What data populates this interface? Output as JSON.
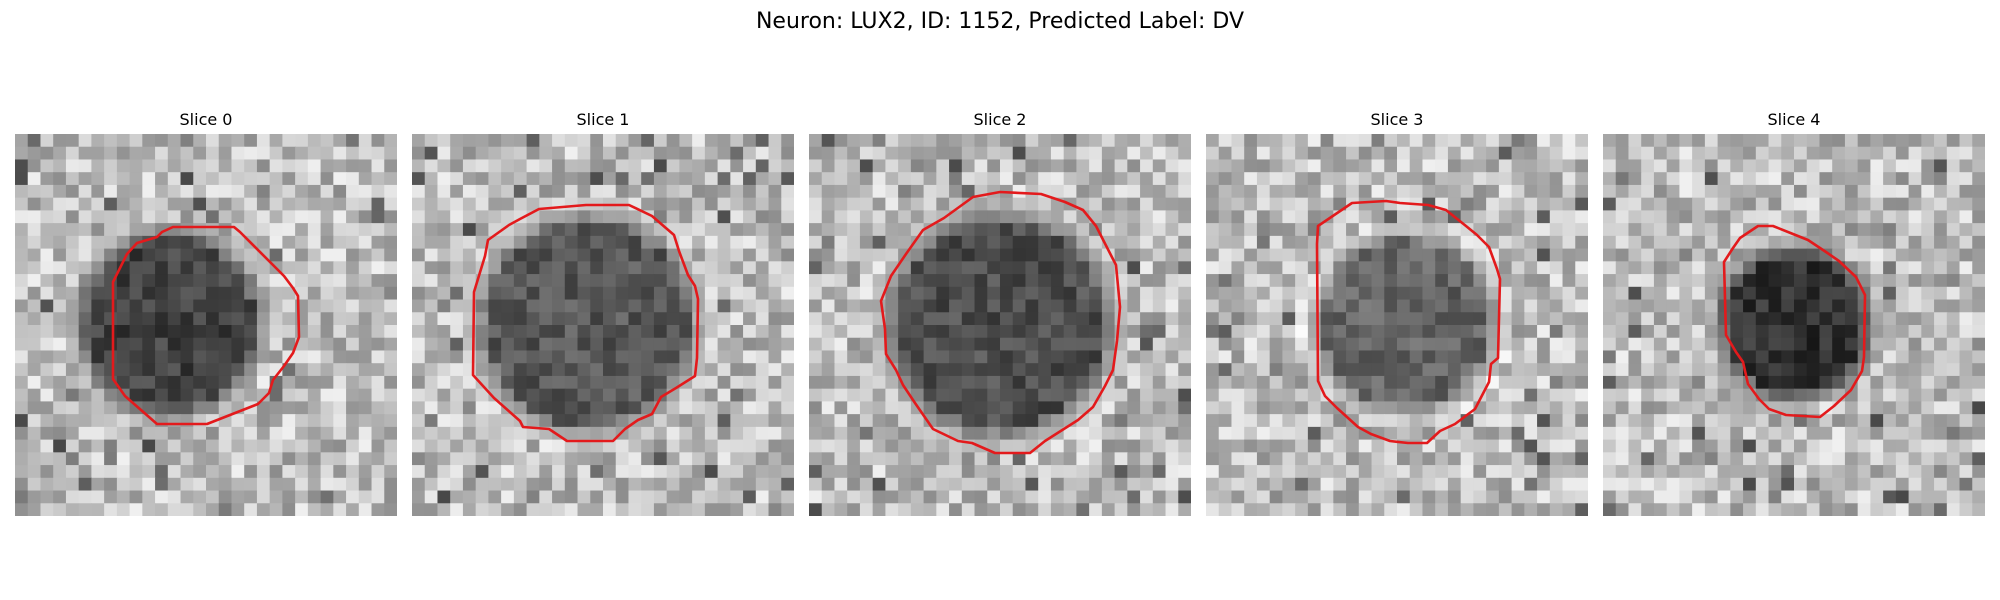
{
  "figure": {
    "title": "Neuron: LUX2, ID: 1152, Predicted Label: DV"
  },
  "colors": {
    "contour": "#e31a1c",
    "background": "#ffffff"
  },
  "panels": [
    {
      "title": "Slice 0"
    },
    {
      "title": "Slice 1"
    },
    {
      "title": "Slice 2"
    },
    {
      "title": "Slice 3"
    },
    {
      "title": "Slice 4"
    }
  ]
}
